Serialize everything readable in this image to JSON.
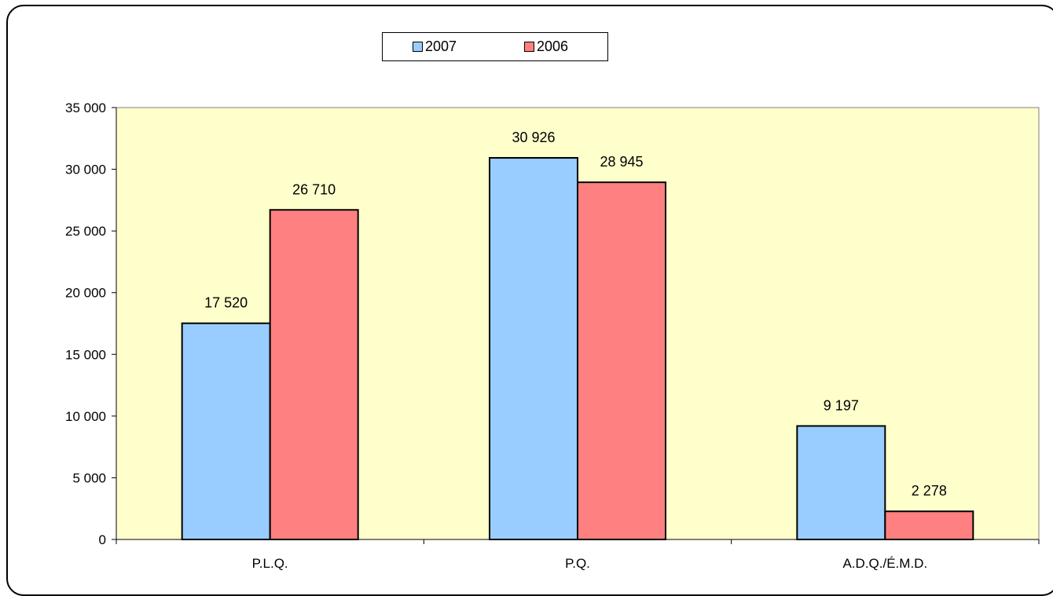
{
  "chart_data": {
    "type": "bar",
    "categories": [
      "P.L.Q.",
      "P.Q.",
      "A.D.Q./É.M.D."
    ],
    "series": [
      {
        "name": "2007",
        "values": [
          17520,
          30926,
          9197
        ],
        "labels": [
          "17 520",
          "30 926",
          "9 197"
        ],
        "color": "#99CCFF"
      },
      {
        "name": "2006",
        "values": [
          26710,
          28945,
          2278
        ],
        "labels": [
          "26 710",
          "28 945",
          "2 278"
        ],
        "color": "#FF8080"
      }
    ],
    "yticks": [
      0,
      5000,
      10000,
      15000,
      20000,
      25000,
      30000,
      35000
    ],
    "ytick_labels": [
      "0",
      "5 000",
      "10 000",
      "15 000",
      "20 000",
      "25 000",
      "30 000",
      "35 000"
    ],
    "ylim": [
      0,
      35000
    ],
    "title": "",
    "xlabel": "",
    "ylabel": "",
    "plot_background": "#FFFFCC",
    "legend_position": "top-center"
  }
}
